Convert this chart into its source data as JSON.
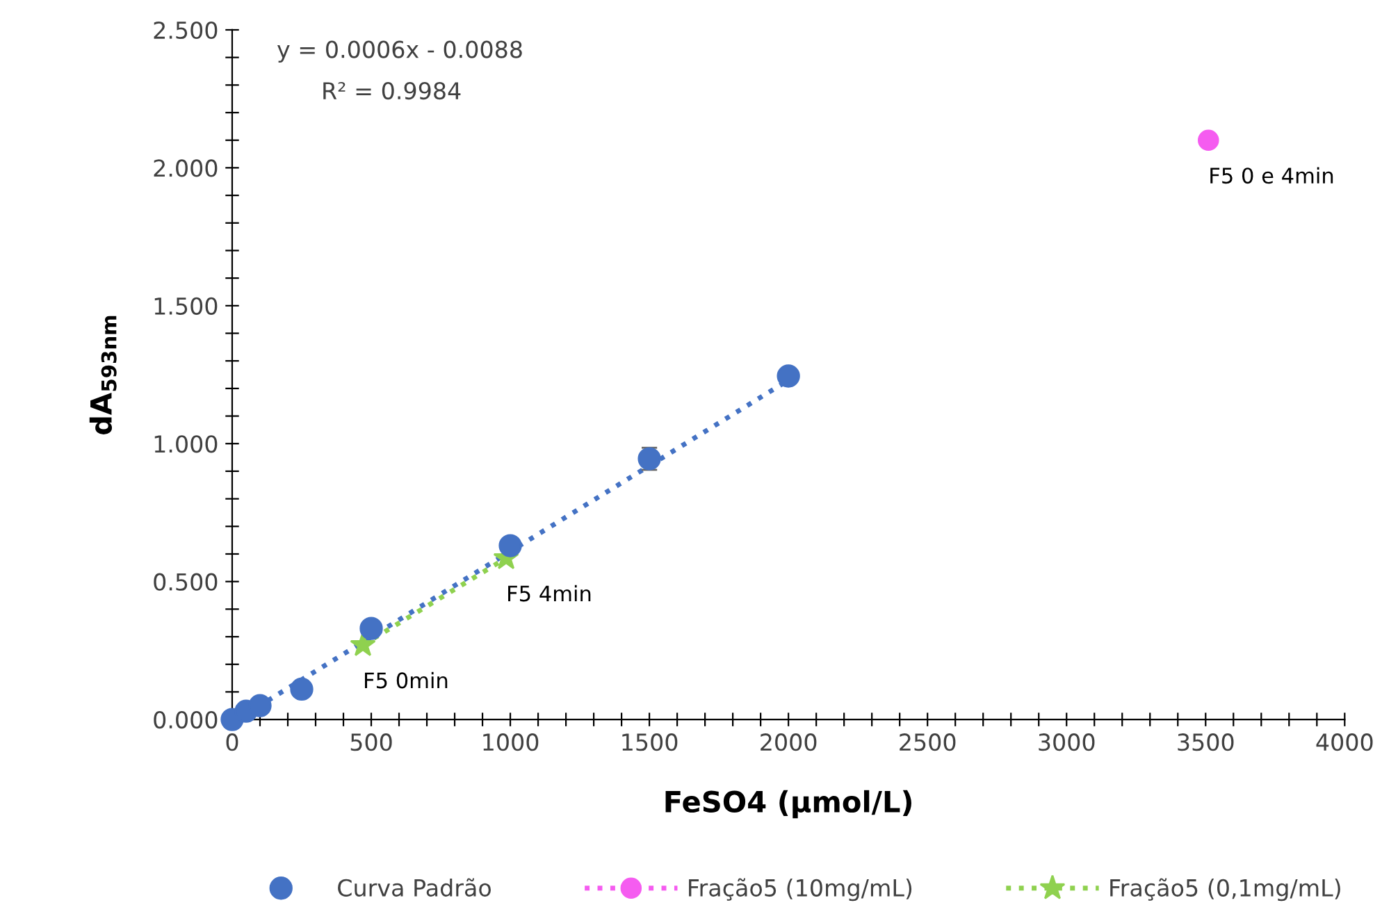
{
  "chart_data": {
    "type": "scatter",
    "xlabel": "FeSO4 (µmol/L)",
    "ylabel": "dA$_{593nm}$",
    "xlim": [
      0,
      4000
    ],
    "ylim": [
      0,
      2.5
    ],
    "xticks": [
      0,
      {
        "value": 100,
        "label": null
      },
      {
        "value": 200,
        "label": null
      },
      {
        "value": 300,
        "label": null
      },
      {
        "value": 400,
        "label": null
      },
      500,
      {
        "value": 600,
        "label": null
      },
      {
        "value": 700,
        "label": null
      },
      {
        "value": 800,
        "label": null
      },
      {
        "value": 900,
        "label": null
      },
      1000,
      {
        "value": 1100,
        "label": null
      },
      {
        "value": 1200,
        "label": null
      },
      {
        "value": 1300,
        "label": null
      },
      {
        "value": 1400,
        "label": null
      },
      1500,
      {
        "value": 1600,
        "label": null
      },
      {
        "value": 1700,
        "label": null
      },
      {
        "value": 1800,
        "label": null
      },
      {
        "value": 1900,
        "label": null
      },
      2000,
      {
        "value": 2100,
        "label": null
      },
      {
        "value": 2200,
        "label": null
      },
      {
        "value": 2300,
        "label": null
      },
      {
        "value": 2400,
        "label": null
      },
      2500,
      {
        "value": 2600,
        "label": null
      },
      {
        "value": 2700,
        "label": null
      },
      {
        "value": 2800,
        "label": null
      },
      {
        "value": 2900,
        "label": null
      },
      3000,
      {
        "value": 3100,
        "label": null
      },
      {
        "value": 3200,
        "label": null
      },
      {
        "value": 3300,
        "label": null
      },
      {
        "value": 3400,
        "label": null
      },
      3500,
      {
        "value": 3600,
        "label": null
      },
      {
        "value": 3700,
        "label": null
      },
      {
        "value": 3800,
        "label": null
      },
      {
        "value": 3900,
        "label": null
      },
      4000
    ],
    "yticks": [
      {
        "value": 0,
        "label": "0.000"
      },
      {
        "value": 0.1,
        "label": null
      },
      {
        "value": 0.2,
        "label": null
      },
      {
        "value": 0.3,
        "label": null
      },
      {
        "value": 0.4,
        "label": null
      },
      {
        "value": 0.5,
        "label": "0.500"
      },
      {
        "value": 0.6,
        "label": null
      },
      {
        "value": 0.7,
        "label": null
      },
      {
        "value": 0.8,
        "label": null
      },
      {
        "value": 0.9,
        "label": null
      },
      {
        "value": 1.0,
        "label": "1.000"
      },
      {
        "value": 1.1,
        "label": null
      },
      {
        "value": 1.2,
        "label": null
      },
      {
        "value": 1.3,
        "label": null
      },
      {
        "value": 1.4,
        "label": null
      },
      {
        "value": 1.5,
        "label": "1.500"
      },
      {
        "value": 1.6,
        "label": null
      },
      {
        "value": 1.7,
        "label": null
      },
      {
        "value": 1.8,
        "label": null
      },
      {
        "value": 1.9,
        "label": null
      },
      {
        "value": 2.0,
        "label": "2.000"
      },
      {
        "value": 2.1,
        "label": null
      },
      {
        "value": 2.2,
        "label": null
      },
      {
        "value": 2.3,
        "label": null
      },
      {
        "value": 2.4,
        "label": null
      },
      {
        "value": 2.5,
        "label": "2.500"
      }
    ],
    "grid": false,
    "legend": "bottom",
    "marker": "circle",
    "series": [
      {
        "type": "line",
        "color": "#4472c4",
        "line_style": "dotted",
        "marker": "none",
        "x": [
          50,
          2000
        ],
        "values": [
          0.02,
          1.23
        ]
      },
      {
        "name": "Curva Padrão",
        "color": "#4472c4",
        "x": [
          0,
          50,
          100,
          250,
          500,
          1000,
          1500,
          2000
        ],
        "values": [
          0,
          0.03,
          0.05,
          0.11,
          0.33,
          0.63,
          0.945,
          1.245
        ],
        "errors": [
          null,
          null,
          null,
          null,
          null,
          null,
          0.04,
          null
        ]
      },
      {
        "name": "Fração5 (10mg/mL)",
        "type": "line",
        "color": "#f55cf0",
        "line_style": "dotted",
        "marker": "circle",
        "x": [
          3510
        ],
        "values": [
          2.1
        ]
      },
      {
        "name": "Fração5 (0,1mg/mL)",
        "type": "line",
        "color": "#8fd14f",
        "line_style": "dotted",
        "marker": "star",
        "x": [
          470,
          985
        ],
        "values": [
          0.27,
          0.585
        ]
      }
    ],
    "annotations": [
      "y = 0.0006x - 0.0088",
      "R² = 0.9984",
      {
        "text": "F5 0min",
        "x": 470,
        "y": 0.27
      },
      {
        "text": "F5 4min",
        "x": 985,
        "y": 0.585
      },
      {
        "text": "F5 0 e 4min",
        "x": 3510,
        "y": 2.1
      }
    ]
  }
}
